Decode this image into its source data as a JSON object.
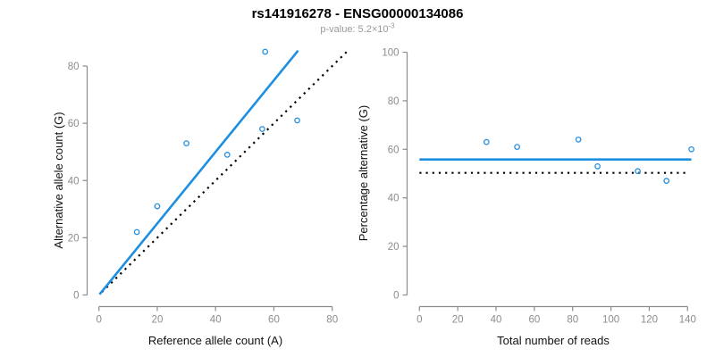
{
  "header": {
    "title": "rs141916278 - ENSG00000134086",
    "p_value_prefix": "p-value: 5.2×10",
    "p_value_exponent": "-3"
  },
  "colors": {
    "accent_blue": "#1E8FE0",
    "reference_black": "#000000",
    "axis_gray": "#8C8C8C",
    "tick_label_gray": "#8C8C8C",
    "axis_title_black": "#111111",
    "subtitle_gray": "#999999"
  },
  "chart_data": [
    {
      "type": "scatter",
      "name": "allele-counts",
      "xlabel": "Reference allele count (A)",
      "ylabel": "Alternative allele count (G)",
      "xlim": [
        0,
        80
      ],
      "ylim": [
        0,
        80
      ],
      "xticks": [
        0,
        20,
        40,
        60,
        80
      ],
      "yticks": [
        0,
        20,
        40,
        60,
        80
      ],
      "grid": false,
      "legend": "none",
      "points": [
        [
          13,
          22
        ],
        [
          20,
          31
        ],
        [
          30,
          53
        ],
        [
          44,
          49
        ],
        [
          56,
          58
        ],
        [
          57,
          85
        ],
        [
          68,
          61
        ]
      ],
      "lines": [
        {
          "role": "identity-line",
          "style": "dotted",
          "color_key": "reference_black",
          "from": [
            1,
            1
          ],
          "to": [
            85,
            85
          ]
        },
        {
          "role": "fit-line",
          "style": "solid",
          "color_key": "accent_blue",
          "from": [
            0.2,
            0.2
          ],
          "to": [
            68.3,
            85.4
          ]
        }
      ]
    },
    {
      "type": "scatter",
      "name": "percentage-alternative",
      "xlabel": "Total number of reads",
      "ylabel": "Percentage alternative (G)",
      "xlim": [
        0,
        140
      ],
      "ylim": [
        0,
        100
      ],
      "xticks": [
        0,
        20,
        40,
        60,
        80,
        100,
        120,
        140
      ],
      "yticks": [
        0,
        20,
        40,
        60,
        80,
        100
      ],
      "grid": false,
      "legend": "none",
      "points": [
        [
          35,
          63
        ],
        [
          51,
          61
        ],
        [
          83,
          64
        ],
        [
          93,
          53
        ],
        [
          114,
          51
        ],
        [
          129,
          47
        ],
        [
          142,
          60
        ]
      ],
      "lines": [
        {
          "role": "expected-50pct-line",
          "style": "dotted",
          "color_key": "reference_black",
          "from": [
            0,
            50.3
          ],
          "to": [
            139,
            50.3
          ]
        },
        {
          "role": "fit-line",
          "style": "solid",
          "color_key": "accent_blue",
          "from": [
            0,
            55.8
          ],
          "to": [
            142,
            55.8
          ]
        }
      ]
    }
  ]
}
